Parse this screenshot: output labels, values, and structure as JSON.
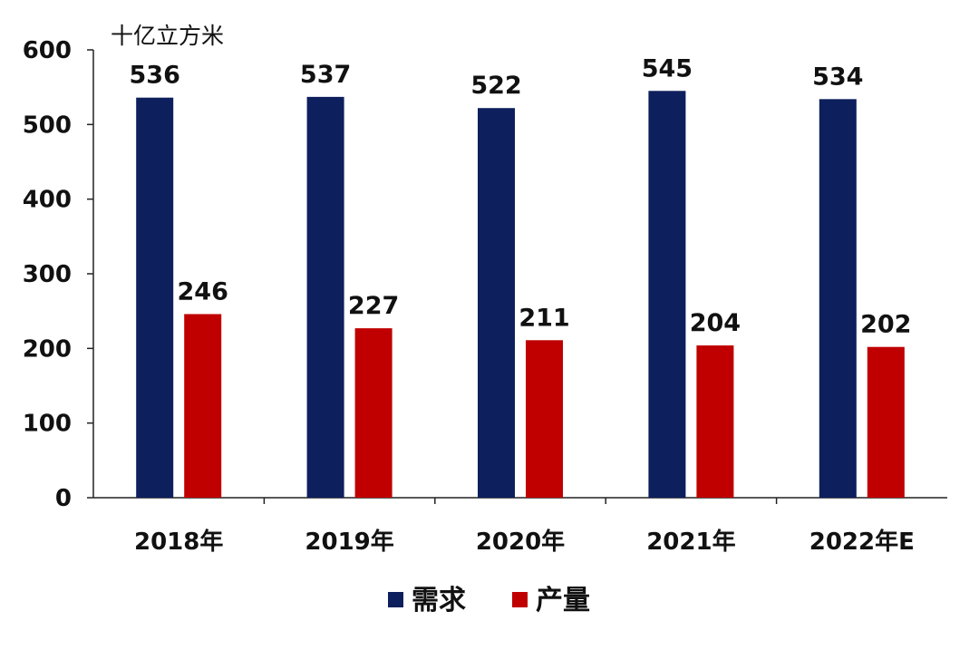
{
  "chart_data": {
    "type": "bar",
    "unit": "十亿立方米",
    "categories": [
      "2018年",
      "2019年",
      "2020年",
      "2021年",
      "2022年E"
    ],
    "series": [
      {
        "name": "需求",
        "color": "#0d1f5c",
        "values": [
          536,
          537,
          522,
          545,
          534
        ]
      },
      {
        "name": "产量",
        "color": "#c00000",
        "values": [
          246,
          227,
          211,
          204,
          202
        ]
      }
    ],
    "ylim": [
      0,
      600
    ],
    "yticks": [
      0,
      100,
      200,
      300,
      400,
      500,
      600
    ],
    "grid": false,
    "legend_position": "bottom"
  }
}
